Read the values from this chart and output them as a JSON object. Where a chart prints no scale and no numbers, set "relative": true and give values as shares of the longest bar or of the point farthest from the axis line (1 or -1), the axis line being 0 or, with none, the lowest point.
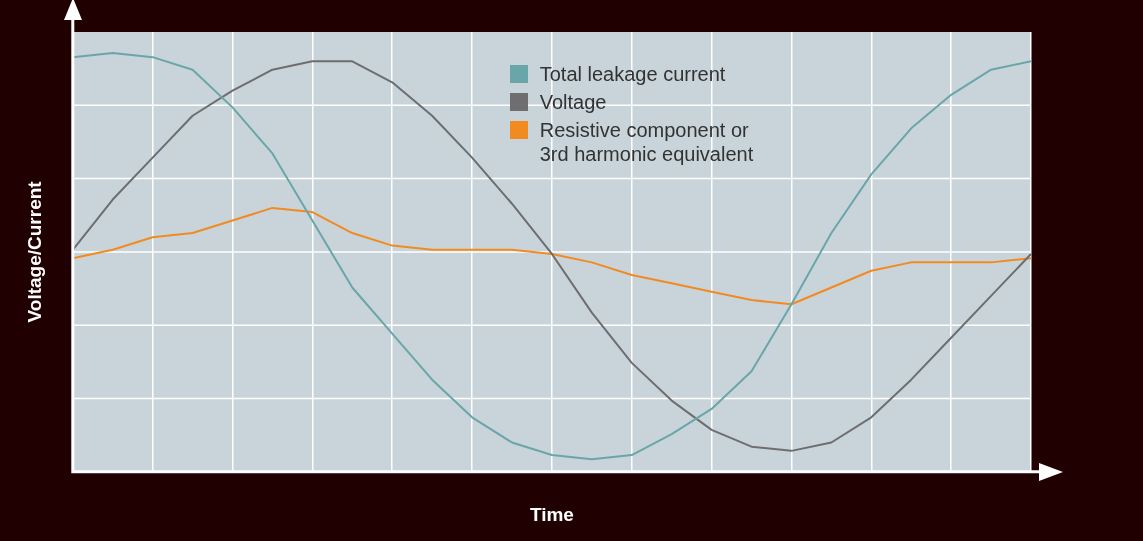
{
  "chart_data": {
    "type": "line",
    "xlabel": "Time",
    "ylabel": "Voltage/Current",
    "relative": true,
    "grid": true,
    "legend": "top right",
    "marker": "none",
    "line_style": "solid",
    "categories": [
      null,
      null,
      null,
      null,
      null,
      null,
      null,
      null,
      null,
      null,
      null,
      null,
      null,
      null,
      null,
      null,
      null,
      null,
      null,
      null,
      null,
      null,
      null,
      null,
      null
    ],
    "series": [
      {
        "name": "Total leakage current",
        "color": "#6aa6a9",
        "values": [
          0.99,
          1.0,
          0.99,
          0.96,
          0.87,
          0.76,
          0.6,
          0.44,
          0.33,
          0.22,
          0.13,
          0.07,
          0.04,
          0.03,
          0.04,
          0.09,
          0.15,
          0.24,
          0.4,
          0.57,
          0.71,
          0.82,
          0.9,
          0.96,
          0.98
        ]
      },
      {
        "name": "Voltage",
        "color": "#6e6e70",
        "values": [
          0.53,
          0.65,
          0.75,
          0.85,
          0.91,
          0.96,
          0.98,
          0.98,
          0.93,
          0.85,
          0.75,
          0.64,
          0.52,
          0.38,
          0.26,
          0.17,
          0.1,
          0.06,
          0.05,
          0.07,
          0.13,
          0.22,
          0.32,
          0.42,
          0.52
        ]
      },
      {
        "name": "Resistive component or 3rd harmonic equivalent",
        "color": "#f28a22",
        "values": [
          0.51,
          0.53,
          0.56,
          0.57,
          0.6,
          0.63,
          0.62,
          0.57,
          0.54,
          0.53,
          0.53,
          0.53,
          0.52,
          0.5,
          0.47,
          0.45,
          0.43,
          0.41,
          0.4,
          0.44,
          0.48,
          0.5,
          0.5,
          0.5,
          0.51
        ]
      }
    ]
  }
}
